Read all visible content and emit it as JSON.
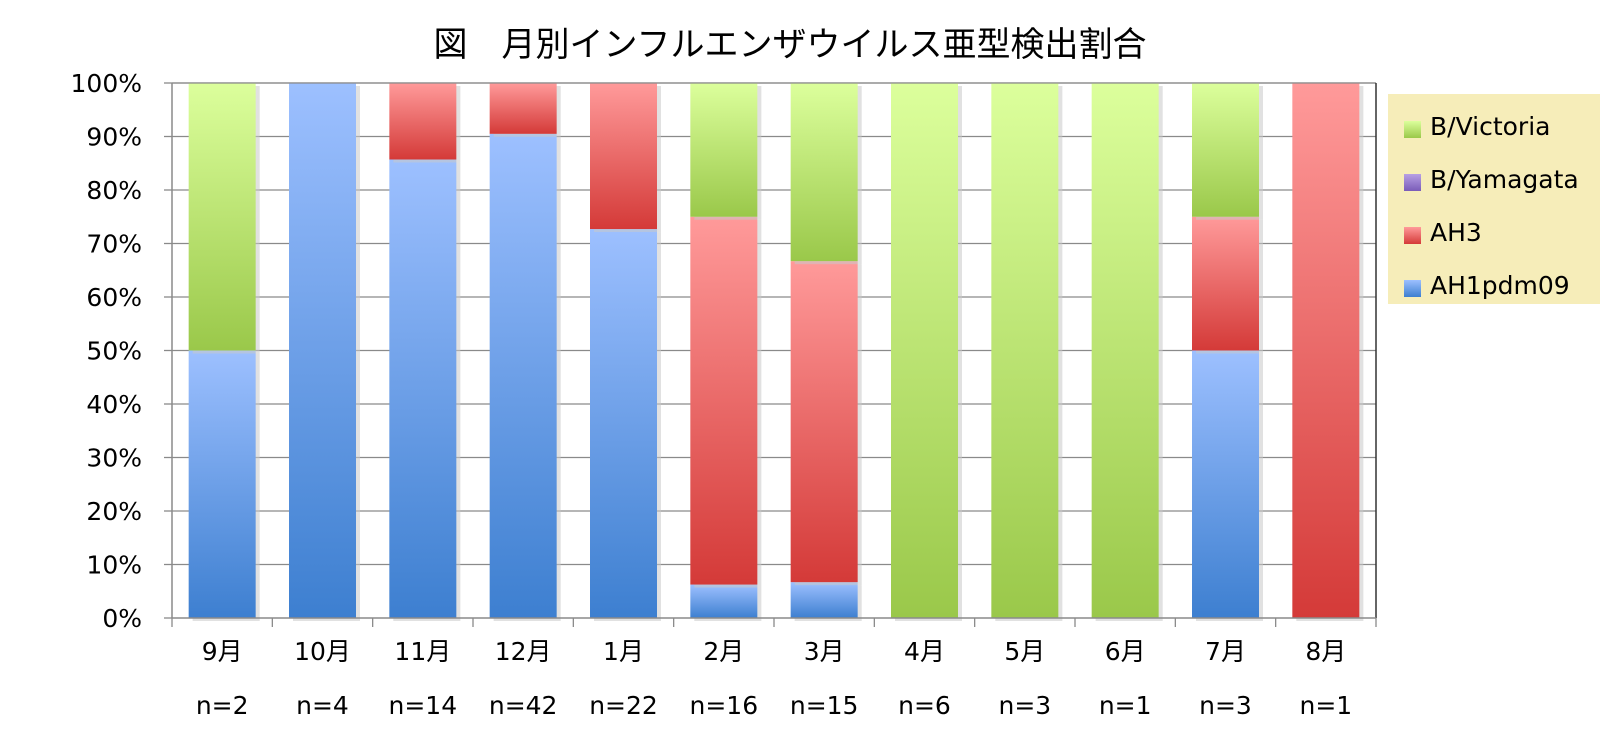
{
  "chart_data": {
    "type": "bar",
    "stacked": true,
    "title": "図　月別インフルエンザウイルス亜型検出割合",
    "categories": [
      "9月",
      "10月",
      "11月",
      "12月",
      "1月",
      "2月",
      "3月",
      "4月",
      "5月",
      "6月",
      "7月",
      "8月"
    ],
    "sample_sizes": [
      "n=2",
      "n=4",
      "n=14",
      "n=42",
      "n=22",
      "n=16",
      "n=15",
      "n=6",
      "n=3",
      "n=1",
      "n=3",
      "n=1"
    ],
    "series": [
      {
        "name": "AH1pdm09",
        "values": [
          50,
          100,
          85.7,
          90.5,
          72.7,
          6.25,
          6.7,
          0,
          0,
          0,
          50,
          0
        ]
      },
      {
        "name": "AH3",
        "values": [
          0,
          0,
          14.3,
          9.5,
          27.3,
          68.75,
          60,
          0,
          0,
          0,
          25,
          100
        ]
      },
      {
        "name": "B/Yamagata",
        "values": [
          0,
          0,
          0,
          0,
          0,
          0,
          0,
          0,
          0,
          0,
          0,
          0
        ]
      },
      {
        "name": "B/Victoria",
        "values": [
          50,
          0,
          0,
          0,
          0,
          25,
          33.3,
          100,
          100,
          100,
          25,
          0
        ]
      }
    ],
    "ylim": [
      0,
      100
    ],
    "yticks": [
      "0%",
      "10%",
      "20%",
      "30%",
      "40%",
      "50%",
      "60%",
      "70%",
      "80%",
      "90%",
      "100%"
    ],
    "legend_order": [
      "B/Victoria",
      "B/Yamagata",
      "AH3",
      "AH1pdm09"
    ],
    "legend_position": "right",
    "grid": true,
    "colors": {
      "AH1pdm09": {
        "light": "#9dc0ff",
        "dark": "#3d7fd0"
      },
      "AH3": {
        "light": "#ff9a9a",
        "dark": "#d43a38"
      },
      "B/Yamagata": {
        "light": "#b7a0e4",
        "dark": "#7a5cb8"
      },
      "B/Victoria": {
        "light": "#dcff9c",
        "dark": "#9ac84a"
      }
    }
  }
}
